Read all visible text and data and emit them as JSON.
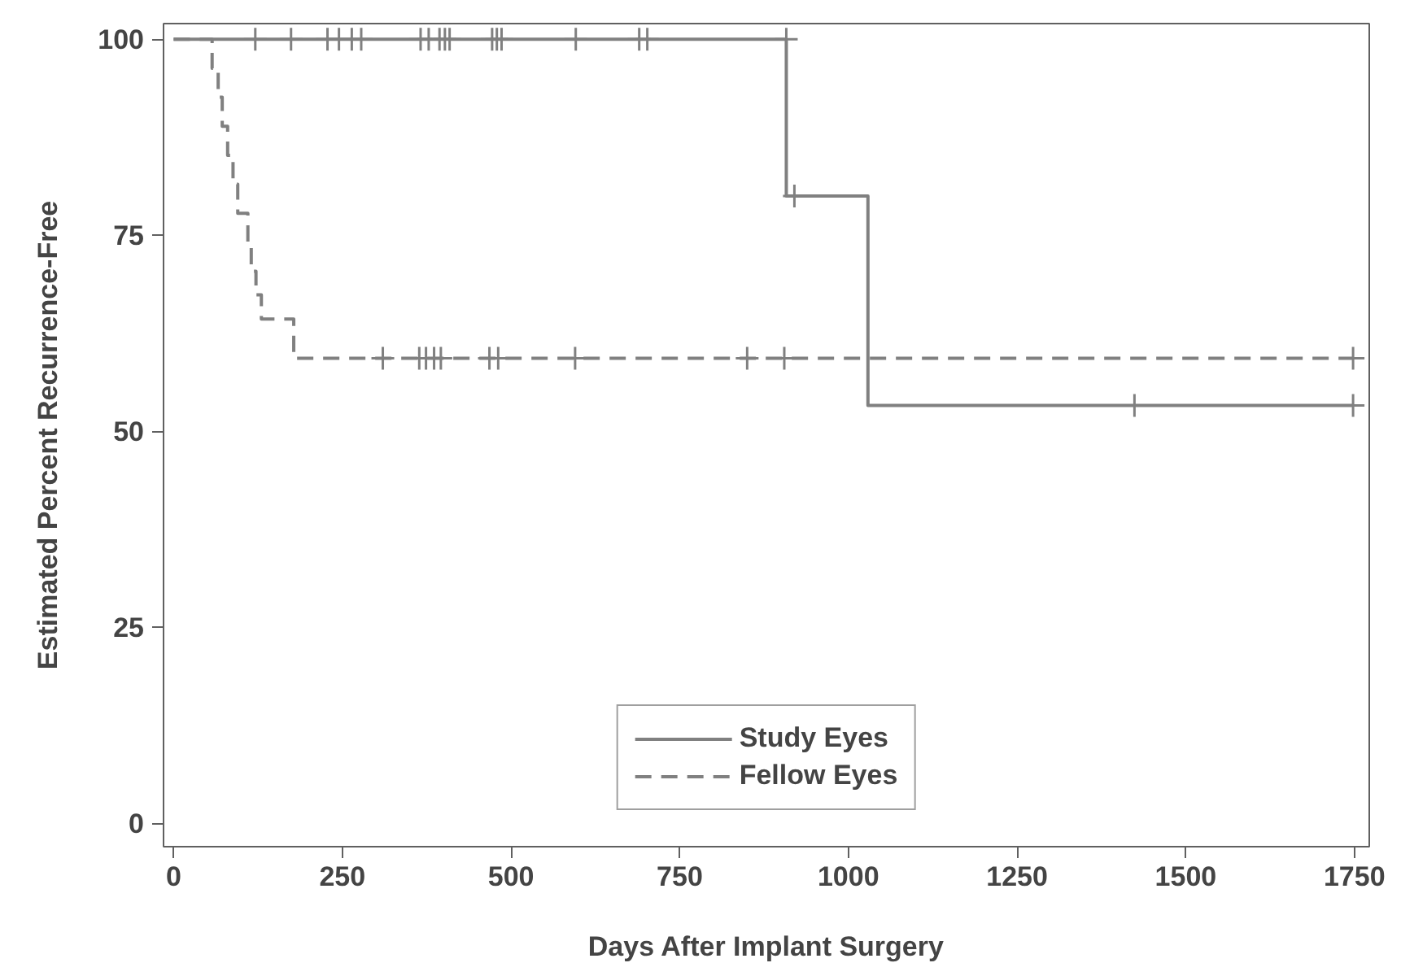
{
  "chart_data": {
    "type": "step",
    "xlabel": "Days After Implant Surgery",
    "ylabel": "Estimated Percent Recurrence-Free",
    "xlim": [
      -15,
      1772
    ],
    "ylim": [
      -3,
      102
    ],
    "xticks": [
      0,
      250,
      500,
      750,
      1000,
      1250,
      1500,
      1750
    ],
    "yticks": [
      0,
      25,
      50,
      75,
      100
    ],
    "grid": false,
    "legend": "bottom",
    "series": [
      {
        "name": "Study Eyes",
        "color": "#808080",
        "line_style": "solid",
        "x": [
          0,
          908,
          1029,
          1748
        ],
        "values": [
          100,
          80,
          53.3,
          53.3
        ]
      },
      {
        "name": "Fellow Eyes",
        "color": "#808080",
        "line_style": "dashed",
        "x": [
          0,
          57,
          66,
          72,
          80,
          88,
          95,
          110,
          115,
          122,
          130,
          178,
          1748
        ],
        "values": [
          100,
          96.3,
          92.6,
          88.9,
          85.2,
          81.5,
          77.8,
          74.1,
          70.4,
          67.4,
          64.3,
          59.3,
          59.3
        ]
      },
      {
        "type": "scatter",
        "marker": "cross",
        "color": "#808080",
        "x": [
          121,
          174,
          228,
          245,
          264,
          278,
          366,
          378,
          394,
          402,
          409,
          472,
          479,
          486,
          596,
          690,
          702,
          908,
          920,
          1424,
          1748
        ],
        "values": [
          100,
          100,
          100,
          100,
          100,
          100,
          100,
          100,
          100,
          100,
          100,
          100,
          100,
          100,
          100,
          100,
          100,
          100,
          80,
          53.3,
          53.3
        ]
      },
      {
        "type": "scatter",
        "marker": "cross",
        "color": "#808080",
        "x": [
          310,
          364,
          374,
          386,
          396,
          468,
          481,
          595,
          850,
          905,
          1748
        ],
        "values": [
          59.3,
          59.3,
          59.3,
          59.3,
          59.3,
          59.3,
          59.3,
          59.3,
          59.3,
          59.3,
          59.3
        ]
      }
    ]
  }
}
